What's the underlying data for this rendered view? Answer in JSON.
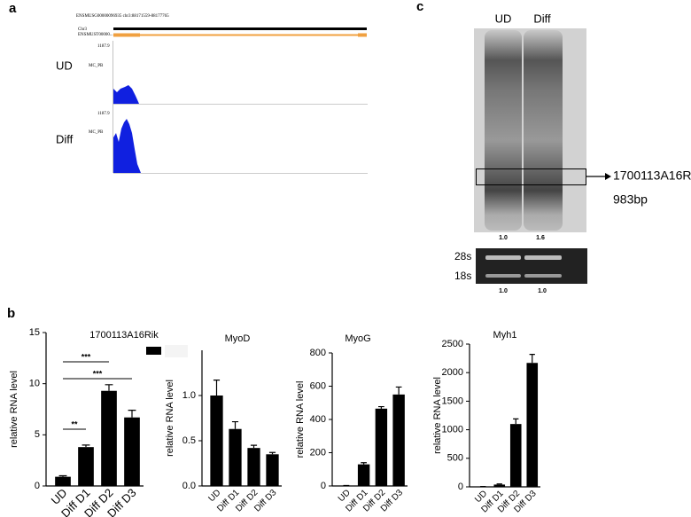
{
  "panel_labels": [
    "a",
    "b",
    "c"
  ],
  "track": {
    "header": "ENSMUSG00000096935 chr3:88171559-88177765",
    "chrom": "Chr3",
    "transcript": "ENSMUST00000...",
    "samples": [
      {
        "name": "UD",
        "scale": "1187.9",
        "track": "MC_PB"
      },
      {
        "name": "Diff",
        "scale": "1187.9",
        "track": "MC_PB"
      }
    ]
  },
  "blot": {
    "lanes": [
      "UD",
      "Diff"
    ],
    "band": "1700113A16Rik",
    "size": "983bp",
    "band_ratios": [
      "1.0",
      "1.6"
    ],
    "rrna": [
      "28s",
      "18s"
    ],
    "rrna_ratios": [
      "1.0",
      "1.0"
    ]
  },
  "chart_data": [
    {
      "type": "bar",
      "title": "1700113A16Rik",
      "y_label": "relative RNA level",
      "categories": [
        "UD",
        "Diff D1",
        "Diff D2",
        "Diff D3"
      ],
      "values": [
        0.9,
        3.8,
        9.3,
        6.7
      ],
      "errors": [
        0.1,
        0.2,
        0.6,
        0.7
      ],
      "color": "#000000",
      "ylim": [
        0,
        15
      ],
      "yticks": [
        0,
        5,
        10,
        15
      ],
      "annotations": [
        "**",
        "***",
        "***"
      ]
    },
    {
      "type": "bar",
      "title": "MyoD",
      "y_label": "relative RNA level",
      "categories": [
        "UD",
        "Diff D1",
        "Diff D2",
        "Diff D3"
      ],
      "values": [
        1.0,
        0.63,
        0.42,
        0.35
      ],
      "errors": [
        0.17,
        0.08,
        0.03,
        0.02
      ],
      "color": "#000000",
      "ylim": [
        0,
        1.5
      ],
      "yticks": [
        {
          "value": 0,
          "label": "0.0"
        },
        {
          "value": 0.5,
          "label": "0.5"
        },
        {
          "value": 1,
          "label": "1.0"
        }
      ]
    },
    {
      "type": "bar",
      "title": "MyoG",
      "y_label": "relative RNA level",
      "categories": [
        "UD",
        "Diff D1",
        "Diff D2",
        "Diff D3"
      ],
      "values": [
        2,
        130,
        465,
        550
      ],
      "errors": [
        1,
        10,
        12,
        45
      ],
      "color": "#000000",
      "ylim": [
        0,
        800
      ],
      "yticks": [
        0,
        200,
        400,
        600,
        800
      ]
    },
    {
      "type": "bar",
      "title": "Myh1",
      "y_label": "relative RNA level",
      "categories": [
        "UD",
        "Diff D1",
        "Diff D2",
        "Diff D3"
      ],
      "values": [
        5,
        40,
        1100,
        2170
      ],
      "errors": [
        2,
        10,
        90,
        150
      ],
      "color": "#000000",
      "ylim": [
        0,
        2500
      ],
      "yticks": [
        0,
        500,
        1000,
        1500,
        2000,
        2500
      ]
    }
  ]
}
